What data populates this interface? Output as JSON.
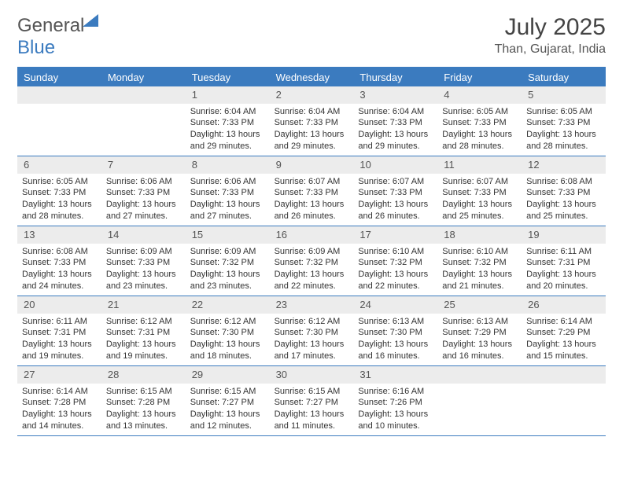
{
  "logo": {
    "part1": "General",
    "part2": "Blue"
  },
  "title": "July 2025",
  "location": "Than, Gujarat, India",
  "colors": {
    "accent": "#3b7bbf",
    "daynum_bg": "#ececec",
    "text": "#333333",
    "muted": "#555555",
    "background": "#ffffff"
  },
  "typography": {
    "title_fontsize": 30,
    "location_fontsize": 16,
    "header_fontsize": 13,
    "body_fontsize": 11
  },
  "day_headers": [
    "Sunday",
    "Monday",
    "Tuesday",
    "Wednesday",
    "Thursday",
    "Friday",
    "Saturday"
  ],
  "weeks": [
    [
      null,
      null,
      {
        "n": "1",
        "sr": "6:04 AM",
        "ss": "7:33 PM",
        "dl": "13 hours and 29 minutes."
      },
      {
        "n": "2",
        "sr": "6:04 AM",
        "ss": "7:33 PM",
        "dl": "13 hours and 29 minutes."
      },
      {
        "n": "3",
        "sr": "6:04 AM",
        "ss": "7:33 PM",
        "dl": "13 hours and 29 minutes."
      },
      {
        "n": "4",
        "sr": "6:05 AM",
        "ss": "7:33 PM",
        "dl": "13 hours and 28 minutes."
      },
      {
        "n": "5",
        "sr": "6:05 AM",
        "ss": "7:33 PM",
        "dl": "13 hours and 28 minutes."
      }
    ],
    [
      {
        "n": "6",
        "sr": "6:05 AM",
        "ss": "7:33 PM",
        "dl": "13 hours and 28 minutes."
      },
      {
        "n": "7",
        "sr": "6:06 AM",
        "ss": "7:33 PM",
        "dl": "13 hours and 27 minutes."
      },
      {
        "n": "8",
        "sr": "6:06 AM",
        "ss": "7:33 PM",
        "dl": "13 hours and 27 minutes."
      },
      {
        "n": "9",
        "sr": "6:07 AM",
        "ss": "7:33 PM",
        "dl": "13 hours and 26 minutes."
      },
      {
        "n": "10",
        "sr": "6:07 AM",
        "ss": "7:33 PM",
        "dl": "13 hours and 26 minutes."
      },
      {
        "n": "11",
        "sr": "6:07 AM",
        "ss": "7:33 PM",
        "dl": "13 hours and 25 minutes."
      },
      {
        "n": "12",
        "sr": "6:08 AM",
        "ss": "7:33 PM",
        "dl": "13 hours and 25 minutes."
      }
    ],
    [
      {
        "n": "13",
        "sr": "6:08 AM",
        "ss": "7:33 PM",
        "dl": "13 hours and 24 minutes."
      },
      {
        "n": "14",
        "sr": "6:09 AM",
        "ss": "7:33 PM",
        "dl": "13 hours and 23 minutes."
      },
      {
        "n": "15",
        "sr": "6:09 AM",
        "ss": "7:32 PM",
        "dl": "13 hours and 23 minutes."
      },
      {
        "n": "16",
        "sr": "6:09 AM",
        "ss": "7:32 PM",
        "dl": "13 hours and 22 minutes."
      },
      {
        "n": "17",
        "sr": "6:10 AM",
        "ss": "7:32 PM",
        "dl": "13 hours and 22 minutes."
      },
      {
        "n": "18",
        "sr": "6:10 AM",
        "ss": "7:32 PM",
        "dl": "13 hours and 21 minutes."
      },
      {
        "n": "19",
        "sr": "6:11 AM",
        "ss": "7:31 PM",
        "dl": "13 hours and 20 minutes."
      }
    ],
    [
      {
        "n": "20",
        "sr": "6:11 AM",
        "ss": "7:31 PM",
        "dl": "13 hours and 19 minutes."
      },
      {
        "n": "21",
        "sr": "6:12 AM",
        "ss": "7:31 PM",
        "dl": "13 hours and 19 minutes."
      },
      {
        "n": "22",
        "sr": "6:12 AM",
        "ss": "7:30 PM",
        "dl": "13 hours and 18 minutes."
      },
      {
        "n": "23",
        "sr": "6:12 AM",
        "ss": "7:30 PM",
        "dl": "13 hours and 17 minutes."
      },
      {
        "n": "24",
        "sr": "6:13 AM",
        "ss": "7:30 PM",
        "dl": "13 hours and 16 minutes."
      },
      {
        "n": "25",
        "sr": "6:13 AM",
        "ss": "7:29 PM",
        "dl": "13 hours and 16 minutes."
      },
      {
        "n": "26",
        "sr": "6:14 AM",
        "ss": "7:29 PM",
        "dl": "13 hours and 15 minutes."
      }
    ],
    [
      {
        "n": "27",
        "sr": "6:14 AM",
        "ss": "7:28 PM",
        "dl": "13 hours and 14 minutes."
      },
      {
        "n": "28",
        "sr": "6:15 AM",
        "ss": "7:28 PM",
        "dl": "13 hours and 13 minutes."
      },
      {
        "n": "29",
        "sr": "6:15 AM",
        "ss": "7:27 PM",
        "dl": "13 hours and 12 minutes."
      },
      {
        "n": "30",
        "sr": "6:15 AM",
        "ss": "7:27 PM",
        "dl": "13 hours and 11 minutes."
      },
      {
        "n": "31",
        "sr": "6:16 AM",
        "ss": "7:26 PM",
        "dl": "13 hours and 10 minutes."
      },
      null,
      null
    ]
  ],
  "labels": {
    "sunrise": "Sunrise:",
    "sunset": "Sunset:",
    "daylight": "Daylight:"
  }
}
